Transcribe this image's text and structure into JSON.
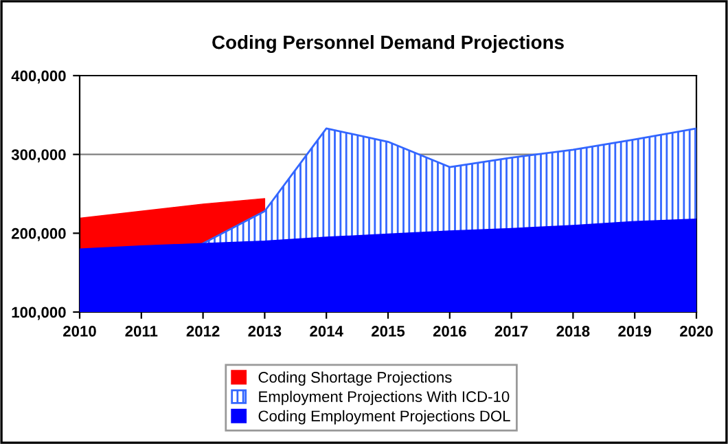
{
  "chart_data": {
    "type": "area",
    "title": "Coding Personnel Demand Projections",
    "x": [
      2010,
      2011,
      2012,
      2013,
      2014,
      2015,
      2016,
      2017,
      2018,
      2019,
      2020
    ],
    "series": [
      {
        "name": "Coding Shortage Projections",
        "color": "#ff0000",
        "values": [
          219000,
          228000,
          237000,
          244000,
          null,
          null,
          null,
          null,
          null,
          null,
          null
        ]
      },
      {
        "name": "Employment Projections With ICD-10",
        "color": "#3366ff",
        "values": [
          null,
          null,
          187000,
          228000,
          333000,
          316000,
          284000,
          296000,
          306000,
          319000,
          333000
        ]
      },
      {
        "name": "Coding Employment Projections DOL",
        "color": "#0000ff",
        "values": [
          180000,
          184000,
          187000,
          190000,
          195000,
          199000,
          203000,
          206000,
          210000,
          215000,
          218000
        ]
      }
    ],
    "xlim": [
      2010,
      2020
    ],
    "xticks": [
      2010,
      2011,
      2012,
      2013,
      2014,
      2015,
      2016,
      2017,
      2018,
      2019,
      2020
    ],
    "ylim": [
      100000,
      400000
    ],
    "yticks": [
      {
        "value": 100000,
        "label": "100,000"
      },
      {
        "value": 200000,
        "label": "200,000"
      },
      {
        "value": 300000,
        "label": "300,000"
      },
      {
        "value": 400000,
        "label": "400,000"
      }
    ],
    "grid": "y",
    "legend": "bottom"
  }
}
